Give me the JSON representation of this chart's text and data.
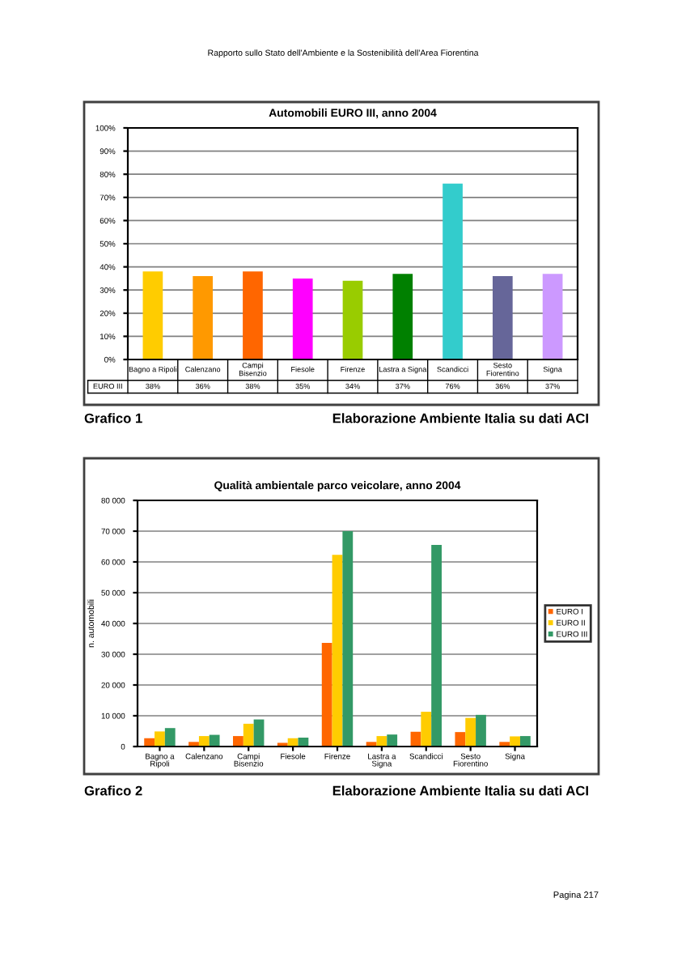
{
  "chart_data": [
    {
      "type": "bar",
      "title": "Automobili EURO III, anno 2004",
      "categories": [
        "Bagno a Ripoli",
        "Calenzano",
        "Campi\nBisenzio",
        "Fiesole",
        "Firenze",
        "Lastra a Signa",
        "Scandicci",
        "Sesto\nFiorentino",
        "Signa"
      ],
      "series": [
        {
          "name": "EURO III",
          "values": [
            38,
            36,
            38,
            35,
            34,
            37,
            76,
            36,
            37
          ],
          "colors": [
            "#ffcc00",
            "#ff9900",
            "#ff6600",
            "#ff00ff",
            "#99cc00",
            "#008000",
            "#33cccc",
            "#666699",
            "#cc99ff"
          ],
          "value_labels": [
            "38%",
            "36%",
            "38%",
            "35%",
            "34%",
            "37%",
            "76%",
            "36%",
            "37%"
          ]
        }
      ],
      "ylim": [
        0,
        100
      ],
      "yticks": [
        {
          "value": 0,
          "label": "0%"
        },
        {
          "value": 10,
          "label": "10%"
        },
        {
          "value": 20,
          "label": "20%"
        },
        {
          "value": 30,
          "label": "30%"
        },
        {
          "value": 40,
          "label": "40%"
        },
        {
          "value": 50,
          "label": "50%"
        },
        {
          "value": 60,
          "label": "60%"
        },
        {
          "value": 70,
          "label": "70%"
        },
        {
          "value": 80,
          "label": "80%"
        },
        {
          "value": 90,
          "label": "90%"
        },
        {
          "value": 100,
          "label": "100%"
        }
      ],
      "grid": "y",
      "annotations": [
        "Rapporto sullo Stato dell'Ambiente e la Sostenibilità dell'Area Fiorentina",
        "Grafico 1",
        "Elaborazione Ambiente Italia su dati ACI"
      ]
    },
    {
      "type": "bar",
      "title": "Qualità ambientale parco veicolare, anno 2004",
      "ylabel": "n. automobili",
      "categories": [
        "Bagno a\nRipoli",
        "Calenzano",
        "Campi\nBisenzio",
        "Fiesole",
        "Firenze",
        "Lastra a\nSigna",
        "Scandicci",
        "Sesto\nFiorentino",
        "Signa"
      ],
      "series": [
        {
          "name": "EURO I",
          "color": "#ff6600",
          "values": [
            2700,
            1500,
            3400,
            1200,
            33700,
            1500,
            4800,
            4700,
            1500
          ]
        },
        {
          "name": "EURO II",
          "color": "#ffcc00",
          "values": [
            4900,
            3400,
            7400,
            2700,
            62300,
            3400,
            11300,
            9300,
            3300
          ]
        },
        {
          "name": "EURO III",
          "color": "#339966",
          "values": [
            6000,
            3800,
            8800,
            2900,
            70000,
            3900,
            65500,
            10300,
            3400
          ]
        }
      ],
      "ylim": [
        0,
        80000
      ],
      "yticks": [
        {
          "value": 0,
          "label": "0"
        },
        {
          "value": 10000,
          "label": "10 000"
        },
        {
          "value": 20000,
          "label": "20 000"
        },
        {
          "value": 30000,
          "label": "30 000"
        },
        {
          "value": 40000,
          "label": "40 000"
        },
        {
          "value": 50000,
          "label": "50 000"
        },
        {
          "value": 60000,
          "label": "60 000"
        },
        {
          "value": 70000,
          "label": "70 000"
        },
        {
          "value": 80000,
          "label": "80 000"
        }
      ],
      "grid": "y",
      "legend": "right",
      "annotations": [
        "Grafico 2",
        "Elaborazione Ambiente Italia su dati ACI",
        "Pagina 217"
      ]
    }
  ]
}
